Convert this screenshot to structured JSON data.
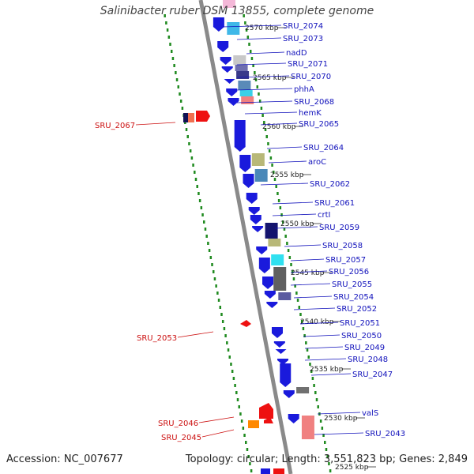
{
  "title": "Salinibacter ruber DSM 13855, complete genome",
  "footer": {
    "accession": "Accession: NC_007677",
    "topology": "Topology: circular; Length: 3,551,823 bp; Genes: 2,849"
  },
  "colors": {
    "backbone": "#8a8a8a",
    "dots": "#1f8a1f",
    "forward_gene_label": "#1111bb",
    "reverse_gene_label": "#cc1111",
    "scale_label": "#222222"
  },
  "kbp_markers": [
    "2570 kbp",
    "2565 kbp",
    "2560 kbp",
    "2555 kbp",
    "2550 kbp",
    "2545 kbp",
    "2540 kbp",
    "2535 kbp",
    "2530 kbp",
    "2525 kbp"
  ],
  "forward_genes": [
    "SRU_2074",
    "SRU_2073",
    "nadD",
    "SRU_2071",
    "SRU_2070",
    "phhA",
    "SRU_2068",
    "hemK",
    "SRU_2065",
    "SRU_2064",
    "aroC",
    "SRU_2062",
    "SRU_2061",
    "crtI",
    "SRU_2059",
    "SRU_2058",
    "SRU_2057",
    "SRU_2056",
    "SRU_2055",
    "SRU_2054",
    "SRU_2052",
    "SRU_2051",
    "SRU_2050",
    "SRU_2049",
    "SRU_2048",
    "SRU_2047",
    "valS",
    "SRU_2043"
  ],
  "reverse_genes": [
    "SRU_2067",
    "SRU_2053",
    "SRU_2046",
    "SRU_2045"
  ]
}
